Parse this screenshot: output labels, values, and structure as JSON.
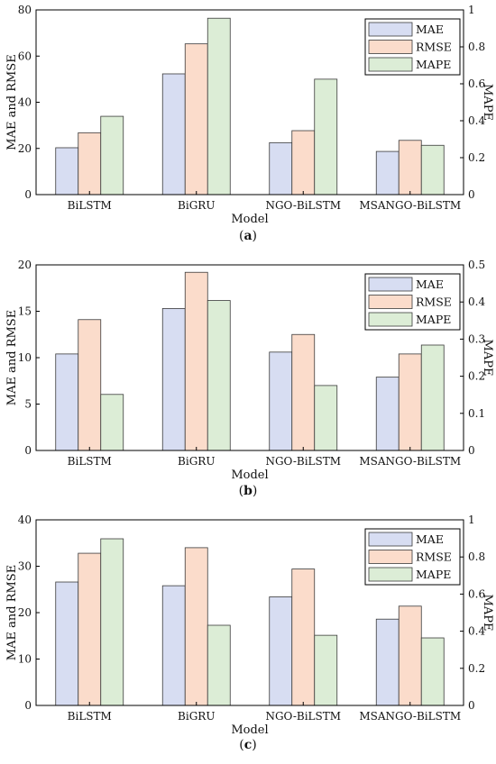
{
  "chart_data": [
    {
      "type": "bar",
      "caption": "(a)",
      "categories": [
        "BiLSTM",
        "BiGRU",
        "NGO-BiLSTM",
        "MSANGO-BiLSTM"
      ],
      "series": [
        {
          "name": "MAE",
          "axis": "left",
          "values": [
            20.3,
            52.3,
            22.5,
            18.7
          ]
        },
        {
          "name": "RMSE",
          "axis": "left",
          "values": [
            26.8,
            65.3,
            27.7,
            23.5
          ]
        },
        {
          "name": "MAPE",
          "axis": "right",
          "values": [
            0.424,
            0.955,
            0.625,
            0.267
          ]
        }
      ],
      "xlabel": "Model",
      "ylabel": "MAE and RMSE",
      "y2label": "MAPE",
      "ylim": [
        0,
        80
      ],
      "y2lim": [
        0,
        1
      ],
      "yticks": [
        "0",
        "20",
        "40",
        "60",
        "80"
      ],
      "y2ticks": [
        "0",
        "0.2",
        "0.4",
        "0.6",
        "0.8",
        "1"
      ],
      "legend": "top-right",
      "grid": false
    },
    {
      "type": "bar",
      "caption": "(b)",
      "categories": [
        "BiLSTM",
        "BiGRU",
        "NGO-BiLSTM",
        "MSANGO-BiLSTM"
      ],
      "series": [
        {
          "name": "MAE",
          "axis": "left",
          "values": [
            10.4,
            15.3,
            10.6,
            7.9
          ]
        },
        {
          "name": "RMSE",
          "axis": "left",
          "values": [
            14.1,
            19.2,
            12.5,
            10.4
          ]
        },
        {
          "name": "MAPE",
          "axis": "right",
          "values": [
            0.151,
            0.404,
            0.175,
            0.284
          ]
        }
      ],
      "xlabel": "Model",
      "ylabel": "MAE and RMSE",
      "y2label": "MAPE",
      "ylim": [
        0,
        20
      ],
      "y2lim": [
        0,
        0.5
      ],
      "yticks": [
        "0",
        "5",
        "10",
        "15",
        "20"
      ],
      "y2ticks": [
        "0",
        "0.1",
        "0.2",
        "0.3",
        "0.4",
        "0.5"
      ],
      "legend": "top-right",
      "grid": false
    },
    {
      "type": "bar",
      "caption": "(c)",
      "categories": [
        "BiLSTM",
        "BiGRU",
        "NGO-BiLSTM",
        "MSANGO-BiLSTM"
      ],
      "series": [
        {
          "name": "MAE",
          "axis": "left",
          "values": [
            26.6,
            25.8,
            23.4,
            18.6
          ]
        },
        {
          "name": "RMSE",
          "axis": "left",
          "values": [
            32.8,
            34.0,
            29.4,
            21.4
          ]
        },
        {
          "name": "MAPE",
          "axis": "right",
          "values": [
            0.898,
            0.432,
            0.378,
            0.364
          ]
        }
      ],
      "xlabel": "Model",
      "ylabel": "MAE and RMSE",
      "y2label": "MAPE",
      "ylim": [
        0,
        40
      ],
      "y2lim": [
        0,
        1
      ],
      "yticks": [
        "0",
        "10",
        "20",
        "30",
        "40"
      ],
      "y2ticks": [
        "0",
        "0.2",
        "0.4",
        "0.6",
        "0.8",
        "1"
      ],
      "legend": "top-right",
      "grid": false
    }
  ],
  "colors": {
    "MAE_fill": "#d7ddf2",
    "RMSE_fill": "#fbdccb",
    "MAPE_fill": "#dcedd6",
    "bar_stroke": "#3a3a3a",
    "axis": "#000000"
  }
}
